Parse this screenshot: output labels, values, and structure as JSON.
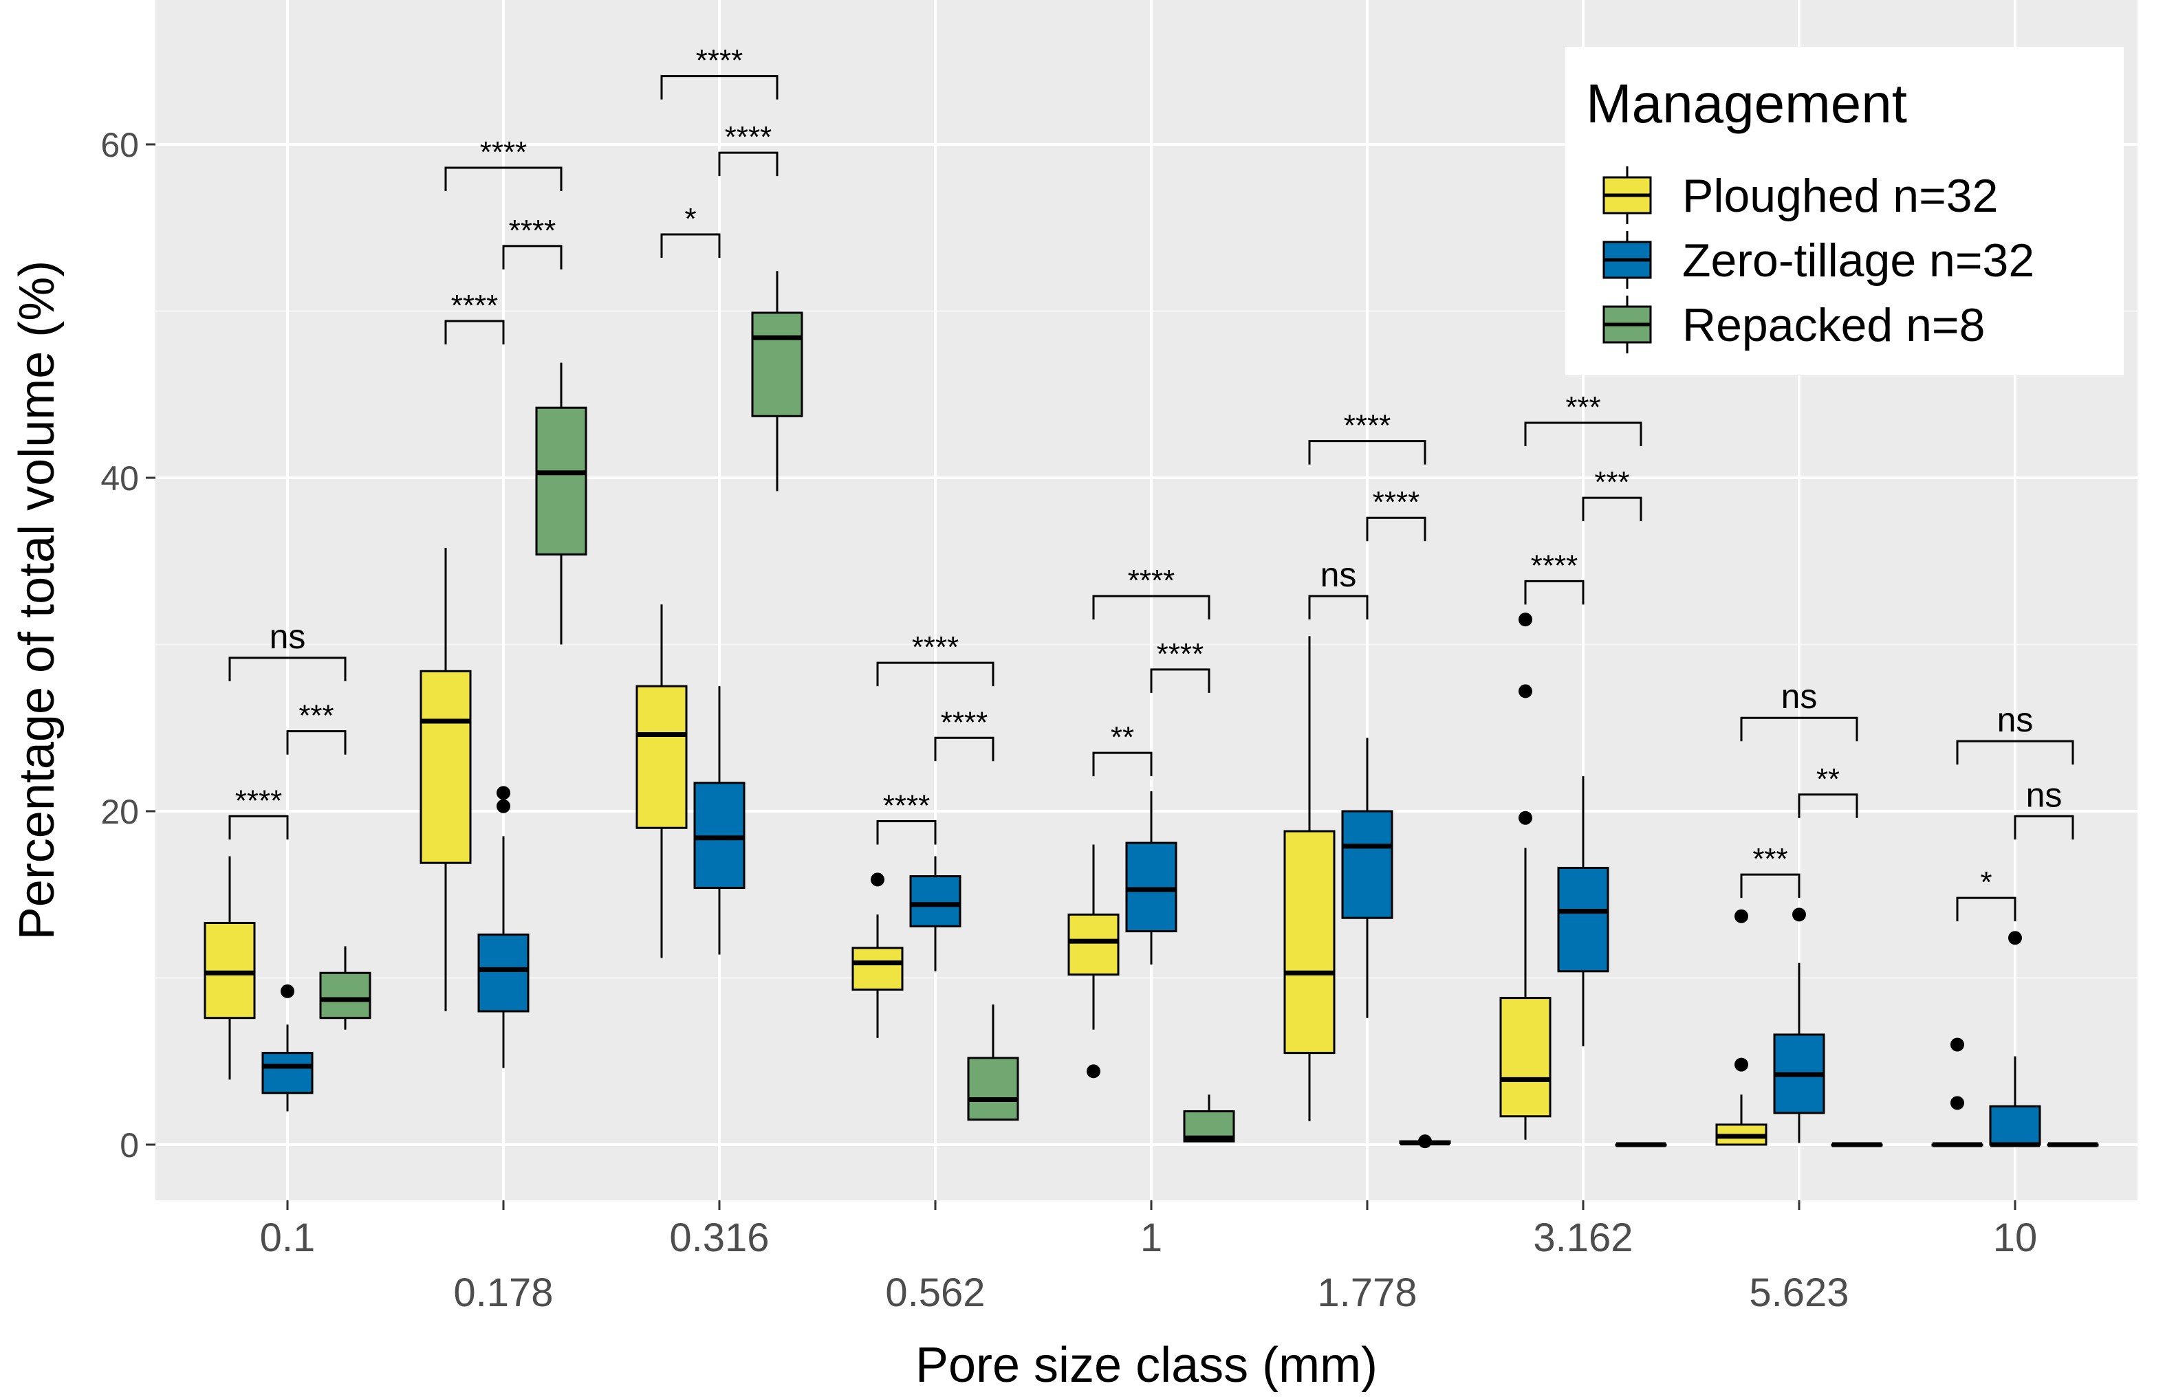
{
  "chart_data": {
    "type": "boxplot",
    "title": "",
    "xlabel": "Pore size class (mm)",
    "ylabel": "Percentage of total volume (%)",
    "ylim": [
      -3,
      67
    ],
    "yticks": [
      0,
      20,
      40,
      60
    ],
    "categories": [
      "0.1",
      "0.178",
      "0.316",
      "0.562",
      "1",
      "1.778",
      "3.162",
      "5.623",
      "10"
    ],
    "legend": {
      "title": "Management",
      "placement": "top-right",
      "entries": [
        "Ploughed n=32",
        "Zero-tillage n=32",
        "Repacked n=8"
      ]
    },
    "colors": {
      "panel": "#ebebeb",
      "grid": "#ffffff",
      "Ploughed": "#f0e442",
      "Zero-tillage": "#0072b2",
      "Repacked": "#71a871"
    },
    "series": [
      {
        "name": "Ploughed",
        "boxes": [
          {
            "min": 3.9,
            "q1": 7.6,
            "median": 10.3,
            "q3": 13.3,
            "max": 17.3,
            "outliers": []
          },
          {
            "min": 8.0,
            "q1": 16.9,
            "median": 25.4,
            "q3": 28.4,
            "max": 35.8,
            "outliers": []
          },
          {
            "min": 11.2,
            "q1": 19.0,
            "median": 24.6,
            "q3": 27.5,
            "max": 32.4,
            "outliers": []
          },
          {
            "min": 6.4,
            "q1": 9.3,
            "median": 10.9,
            "q3": 11.8,
            "max": 13.8,
            "outliers": [
              15.9
            ]
          },
          {
            "min": 6.9,
            "q1": 10.2,
            "median": 12.2,
            "q3": 13.8,
            "max": 18.0,
            "outliers": [
              4.4
            ]
          },
          {
            "min": 1.4,
            "q1": 5.5,
            "median": 10.3,
            "q3": 18.8,
            "max": 30.5,
            "outliers": []
          },
          {
            "min": 0.3,
            "q1": 1.7,
            "median": 3.9,
            "q3": 8.8,
            "max": 17.8,
            "outliers": [
              19.6,
              27.2,
              31.5
            ]
          },
          {
            "min": 0.0,
            "q1": 0.0,
            "median": 0.5,
            "q3": 1.2,
            "max": 3.0,
            "outliers": [
              4.8,
              13.7
            ]
          },
          {
            "min": 0.0,
            "q1": 0.0,
            "median": 0.0,
            "q3": 0.0,
            "max": 0.0,
            "outliers": [
              2.5,
              6.0
            ]
          }
        ]
      },
      {
        "name": "Zero-tillage",
        "boxes": [
          {
            "min": 2.0,
            "q1": 3.1,
            "median": 4.7,
            "q3": 5.5,
            "max": 7.2,
            "outliers": [
              9.2
            ]
          },
          {
            "min": 4.6,
            "q1": 8.0,
            "median": 10.5,
            "q3": 12.6,
            "max": 18.5,
            "outliers": [
              20.3,
              21.1
            ]
          },
          {
            "min": 11.4,
            "q1": 15.4,
            "median": 18.4,
            "q3": 21.7,
            "max": 27.5,
            "outliers": []
          },
          {
            "min": 10.4,
            "q1": 13.1,
            "median": 14.4,
            "q3": 16.1,
            "max": 17.3,
            "outliers": []
          },
          {
            "min": 10.8,
            "q1": 12.8,
            "median": 15.3,
            "q3": 18.1,
            "max": 21.2,
            "outliers": []
          },
          {
            "min": 7.6,
            "q1": 13.6,
            "median": 17.9,
            "q3": 20.0,
            "max": 24.4,
            "outliers": []
          },
          {
            "min": 5.9,
            "q1": 10.4,
            "median": 14.0,
            "q3": 16.6,
            "max": 22.1,
            "outliers": []
          },
          {
            "min": 0.1,
            "q1": 1.9,
            "median": 4.2,
            "q3": 6.6,
            "max": 10.9,
            "outliers": [
              13.8
            ]
          },
          {
            "min": 0.0,
            "q1": 0.0,
            "median": 0.0,
            "q3": 2.3,
            "max": 5.3,
            "outliers": [
              12.4
            ]
          }
        ]
      },
      {
        "name": "Repacked",
        "boxes": [
          {
            "min": 6.9,
            "q1": 7.6,
            "median": 8.7,
            "q3": 10.3,
            "max": 11.9,
            "outliers": []
          },
          {
            "min": 30.0,
            "q1": 35.4,
            "median": 40.3,
            "q3": 44.2,
            "max": 46.9,
            "outliers": []
          },
          {
            "min": 39.2,
            "q1": 43.7,
            "median": 48.4,
            "q3": 49.9,
            "max": 52.4,
            "outliers": []
          },
          {
            "min": 1.5,
            "q1": 1.5,
            "median": 2.7,
            "q3": 5.2,
            "max": 8.4,
            "outliers": []
          },
          {
            "min": 0.2,
            "q1": 0.2,
            "median": 0.4,
            "q3": 2.0,
            "max": 3.0,
            "outliers": []
          },
          {
            "min": 0.0,
            "q1": 0.1,
            "median": 0.1,
            "q3": 0.2,
            "max": 0.3,
            "outliers": [
              0.2
            ]
          },
          {
            "min": 0.0,
            "q1": 0.0,
            "median": 0.0,
            "q3": 0.0,
            "max": 0.0,
            "outliers": []
          },
          {
            "min": 0.0,
            "q1": 0.0,
            "median": 0.0,
            "q3": 0.0,
            "max": 0.0,
            "outliers": []
          },
          {
            "min": 0.0,
            "q1": 0.0,
            "median": 0.0,
            "q3": 0.0,
            "max": 0.0,
            "outliers": []
          }
        ]
      }
    ],
    "significance": [
      {
        "category": 0,
        "brackets": [
          {
            "from": 0,
            "to": 1,
            "y": 19.7,
            "label": "****"
          },
          {
            "from": 1,
            "to": 2,
            "y": 24.8,
            "label": "***"
          },
          {
            "from": 0,
            "to": 2,
            "y": 29.2,
            "label": "ns"
          }
        ]
      },
      {
        "category": 1,
        "brackets": [
          {
            "from": 0,
            "to": 1,
            "y": 49.4,
            "label": "****"
          },
          {
            "from": 1,
            "to": 2,
            "y": 53.9,
            "label": "****"
          },
          {
            "from": 0,
            "to": 2,
            "y": 58.6,
            "label": "****"
          }
        ]
      },
      {
        "category": 2,
        "brackets": [
          {
            "from": 0,
            "to": 1,
            "y": 54.6,
            "label": "*"
          },
          {
            "from": 1,
            "to": 2,
            "y": 59.5,
            "label": "****"
          },
          {
            "from": 0,
            "to": 2,
            "y": 64.1,
            "label": "****"
          }
        ]
      },
      {
        "category": 3,
        "brackets": [
          {
            "from": 0,
            "to": 1,
            "y": 19.4,
            "label": "****"
          },
          {
            "from": 1,
            "to": 2,
            "y": 24.4,
            "label": "****"
          },
          {
            "from": 0,
            "to": 2,
            "y": 28.9,
            "label": "****"
          }
        ]
      },
      {
        "category": 4,
        "brackets": [
          {
            "from": 0,
            "to": 1,
            "y": 23.5,
            "label": "**"
          },
          {
            "from": 1,
            "to": 2,
            "y": 28.5,
            "label": "****"
          },
          {
            "from": 0,
            "to": 2,
            "y": 32.9,
            "label": "****"
          }
        ]
      },
      {
        "category": 5,
        "brackets": [
          {
            "from": 0,
            "to": 1,
            "y": 32.9,
            "label": "ns"
          },
          {
            "from": 1,
            "to": 2,
            "y": 37.6,
            "label": "****"
          },
          {
            "from": 0,
            "to": 2,
            "y": 42.2,
            "label": "****"
          }
        ]
      },
      {
        "category": 6,
        "brackets": [
          {
            "from": 0,
            "to": 1,
            "y": 33.8,
            "label": "****"
          },
          {
            "from": 1,
            "to": 2,
            "y": 38.8,
            "label": "***"
          },
          {
            "from": 0,
            "to": 2,
            "y": 43.3,
            "label": "***"
          }
        ]
      },
      {
        "category": 7,
        "brackets": [
          {
            "from": 0,
            "to": 1,
            "y": 16.2,
            "label": "***"
          },
          {
            "from": 1,
            "to": 2,
            "y": 21.0,
            "label": "**"
          },
          {
            "from": 0,
            "to": 2,
            "y": 25.6,
            "label": "ns"
          }
        ]
      },
      {
        "category": 8,
        "brackets": [
          {
            "from": 0,
            "to": 1,
            "y": 14.8,
            "label": "*"
          },
          {
            "from": 1,
            "to": 2,
            "y": 19.7,
            "label": "ns"
          },
          {
            "from": 0,
            "to": 2,
            "y": 24.2,
            "label": "ns"
          }
        ]
      }
    ]
  }
}
